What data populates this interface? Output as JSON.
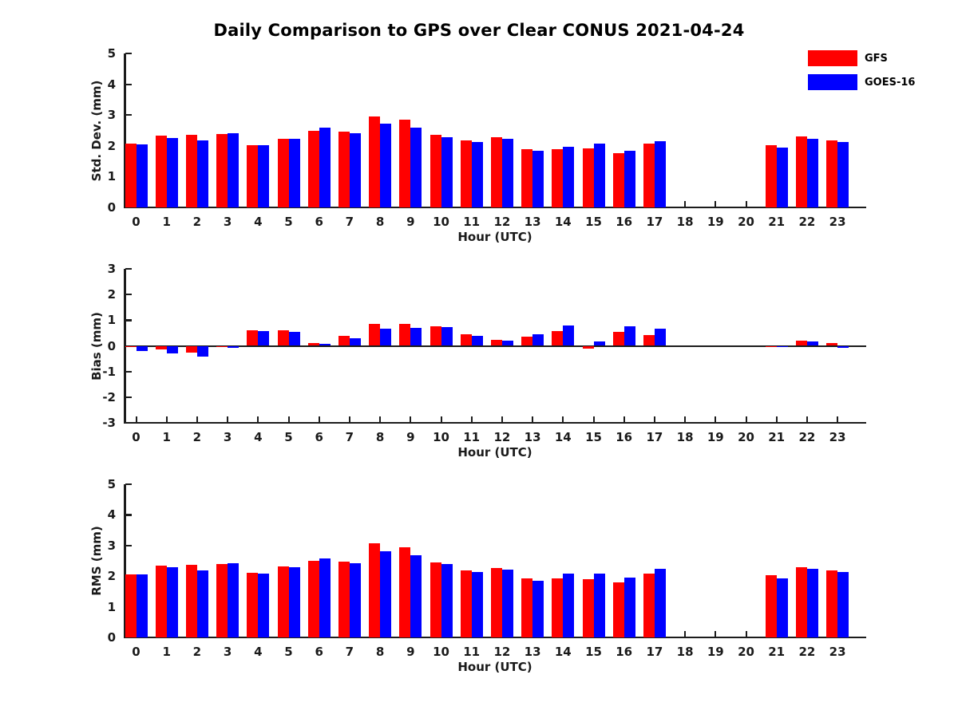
{
  "title": "Daily Comparison to GPS over Clear CONUS 2021-04-24",
  "legend": {
    "items": [
      {
        "label": "GFS",
        "color": "#ff0000"
      },
      {
        "label": "GOES-16",
        "color": "#0000ff"
      }
    ]
  },
  "chart_data": [
    {
      "type": "bar",
      "name": "std-dev",
      "ylabel": "Std. Dev. (mm)",
      "xlabel": "Hour (UTC)",
      "ylim": [
        0,
        5
      ],
      "yticks": [
        0,
        1,
        2,
        3,
        4,
        5
      ],
      "grid": false,
      "legend_position": "top-right",
      "categories": [
        "0",
        "1",
        "2",
        "3",
        "4",
        "5",
        "6",
        "7",
        "8",
        "9",
        "10",
        "11",
        "12",
        "13",
        "14",
        "15",
        "16",
        "17",
        "18",
        "19",
        "20",
        "21",
        "22",
        "23"
      ],
      "series": [
        {
          "name": "GFS",
          "color": "#ff0000",
          "values": [
            2.07,
            2.34,
            2.36,
            2.39,
            2.03,
            2.24,
            2.5,
            2.45,
            2.96,
            2.84,
            2.35,
            2.17,
            2.27,
            1.89,
            1.9,
            1.92,
            1.77,
            2.06,
            null,
            null,
            null,
            2.03,
            2.3,
            2.17
          ]
        },
        {
          "name": "GOES-16",
          "color": "#0000ff",
          "values": [
            2.05,
            2.26,
            2.17,
            2.42,
            2.03,
            2.24,
            2.6,
            2.42,
            2.73,
            2.6,
            2.29,
            2.12,
            2.22,
            1.83,
            1.96,
            2.08,
            1.84,
            2.16,
            null,
            null,
            null,
            1.94,
            2.24,
            2.12
          ]
        }
      ]
    },
    {
      "type": "bar",
      "name": "bias",
      "ylabel": "Bias (mm)",
      "xlabel": "Hour (UTC)",
      "ylim": [
        -3,
        3
      ],
      "yticks": [
        -3,
        -2,
        -1,
        0,
        1,
        2,
        3
      ],
      "grid": false,
      "zero_line": true,
      "categories": [
        "0",
        "1",
        "2",
        "3",
        "4",
        "5",
        "6",
        "7",
        "8",
        "9",
        "10",
        "11",
        "12",
        "13",
        "14",
        "15",
        "16",
        "17",
        "18",
        "19",
        "20",
        "21",
        "22",
        "23"
      ],
      "series": [
        {
          "name": "GFS",
          "color": "#ff0000",
          "values": [
            -0.05,
            -0.13,
            -0.26,
            -0.06,
            0.6,
            0.62,
            0.12,
            0.38,
            0.86,
            0.85,
            0.76,
            0.45,
            0.24,
            0.36,
            0.57,
            -0.12,
            0.55,
            0.43,
            null,
            null,
            null,
            -0.03,
            0.2,
            0.1
          ]
        },
        {
          "name": "GOES-16",
          "color": "#0000ff",
          "values": [
            -0.19,
            -0.29,
            -0.43,
            -0.09,
            0.57,
            0.55,
            0.07,
            0.28,
            0.67,
            0.7,
            0.73,
            0.39,
            0.2,
            0.46,
            0.78,
            0.18,
            0.76,
            0.68,
            null,
            null,
            null,
            -0.04,
            0.17,
            -0.08
          ]
        }
      ]
    },
    {
      "type": "bar",
      "name": "rms",
      "ylabel": "RMS (mm)",
      "xlabel": "Hour (UTC)",
      "ylim": [
        0,
        5
      ],
      "yticks": [
        0,
        1,
        2,
        3,
        4,
        5
      ],
      "grid": false,
      "categories": [
        "0",
        "1",
        "2",
        "3",
        "4",
        "5",
        "6",
        "7",
        "8",
        "9",
        "10",
        "11",
        "12",
        "13",
        "14",
        "15",
        "16",
        "17",
        "18",
        "19",
        "20",
        "21",
        "22",
        "23"
      ],
      "series": [
        {
          "name": "GFS",
          "color": "#ff0000",
          "values": [
            2.07,
            2.35,
            2.37,
            2.4,
            2.12,
            2.32,
            2.51,
            2.48,
            3.06,
            2.93,
            2.45,
            2.19,
            2.27,
            1.93,
            1.93,
            1.9,
            1.79,
            2.08,
            null,
            null,
            null,
            2.02,
            2.3,
            2.18
          ]
        },
        {
          "name": "GOES-16",
          "color": "#0000ff",
          "values": [
            2.07,
            2.3,
            2.2,
            2.42,
            2.09,
            2.29,
            2.57,
            2.43,
            2.81,
            2.68,
            2.4,
            2.14,
            2.22,
            1.84,
            2.08,
            2.08,
            1.96,
            2.24,
            null,
            null,
            null,
            1.92,
            2.24,
            2.14
          ]
        }
      ]
    }
  ]
}
